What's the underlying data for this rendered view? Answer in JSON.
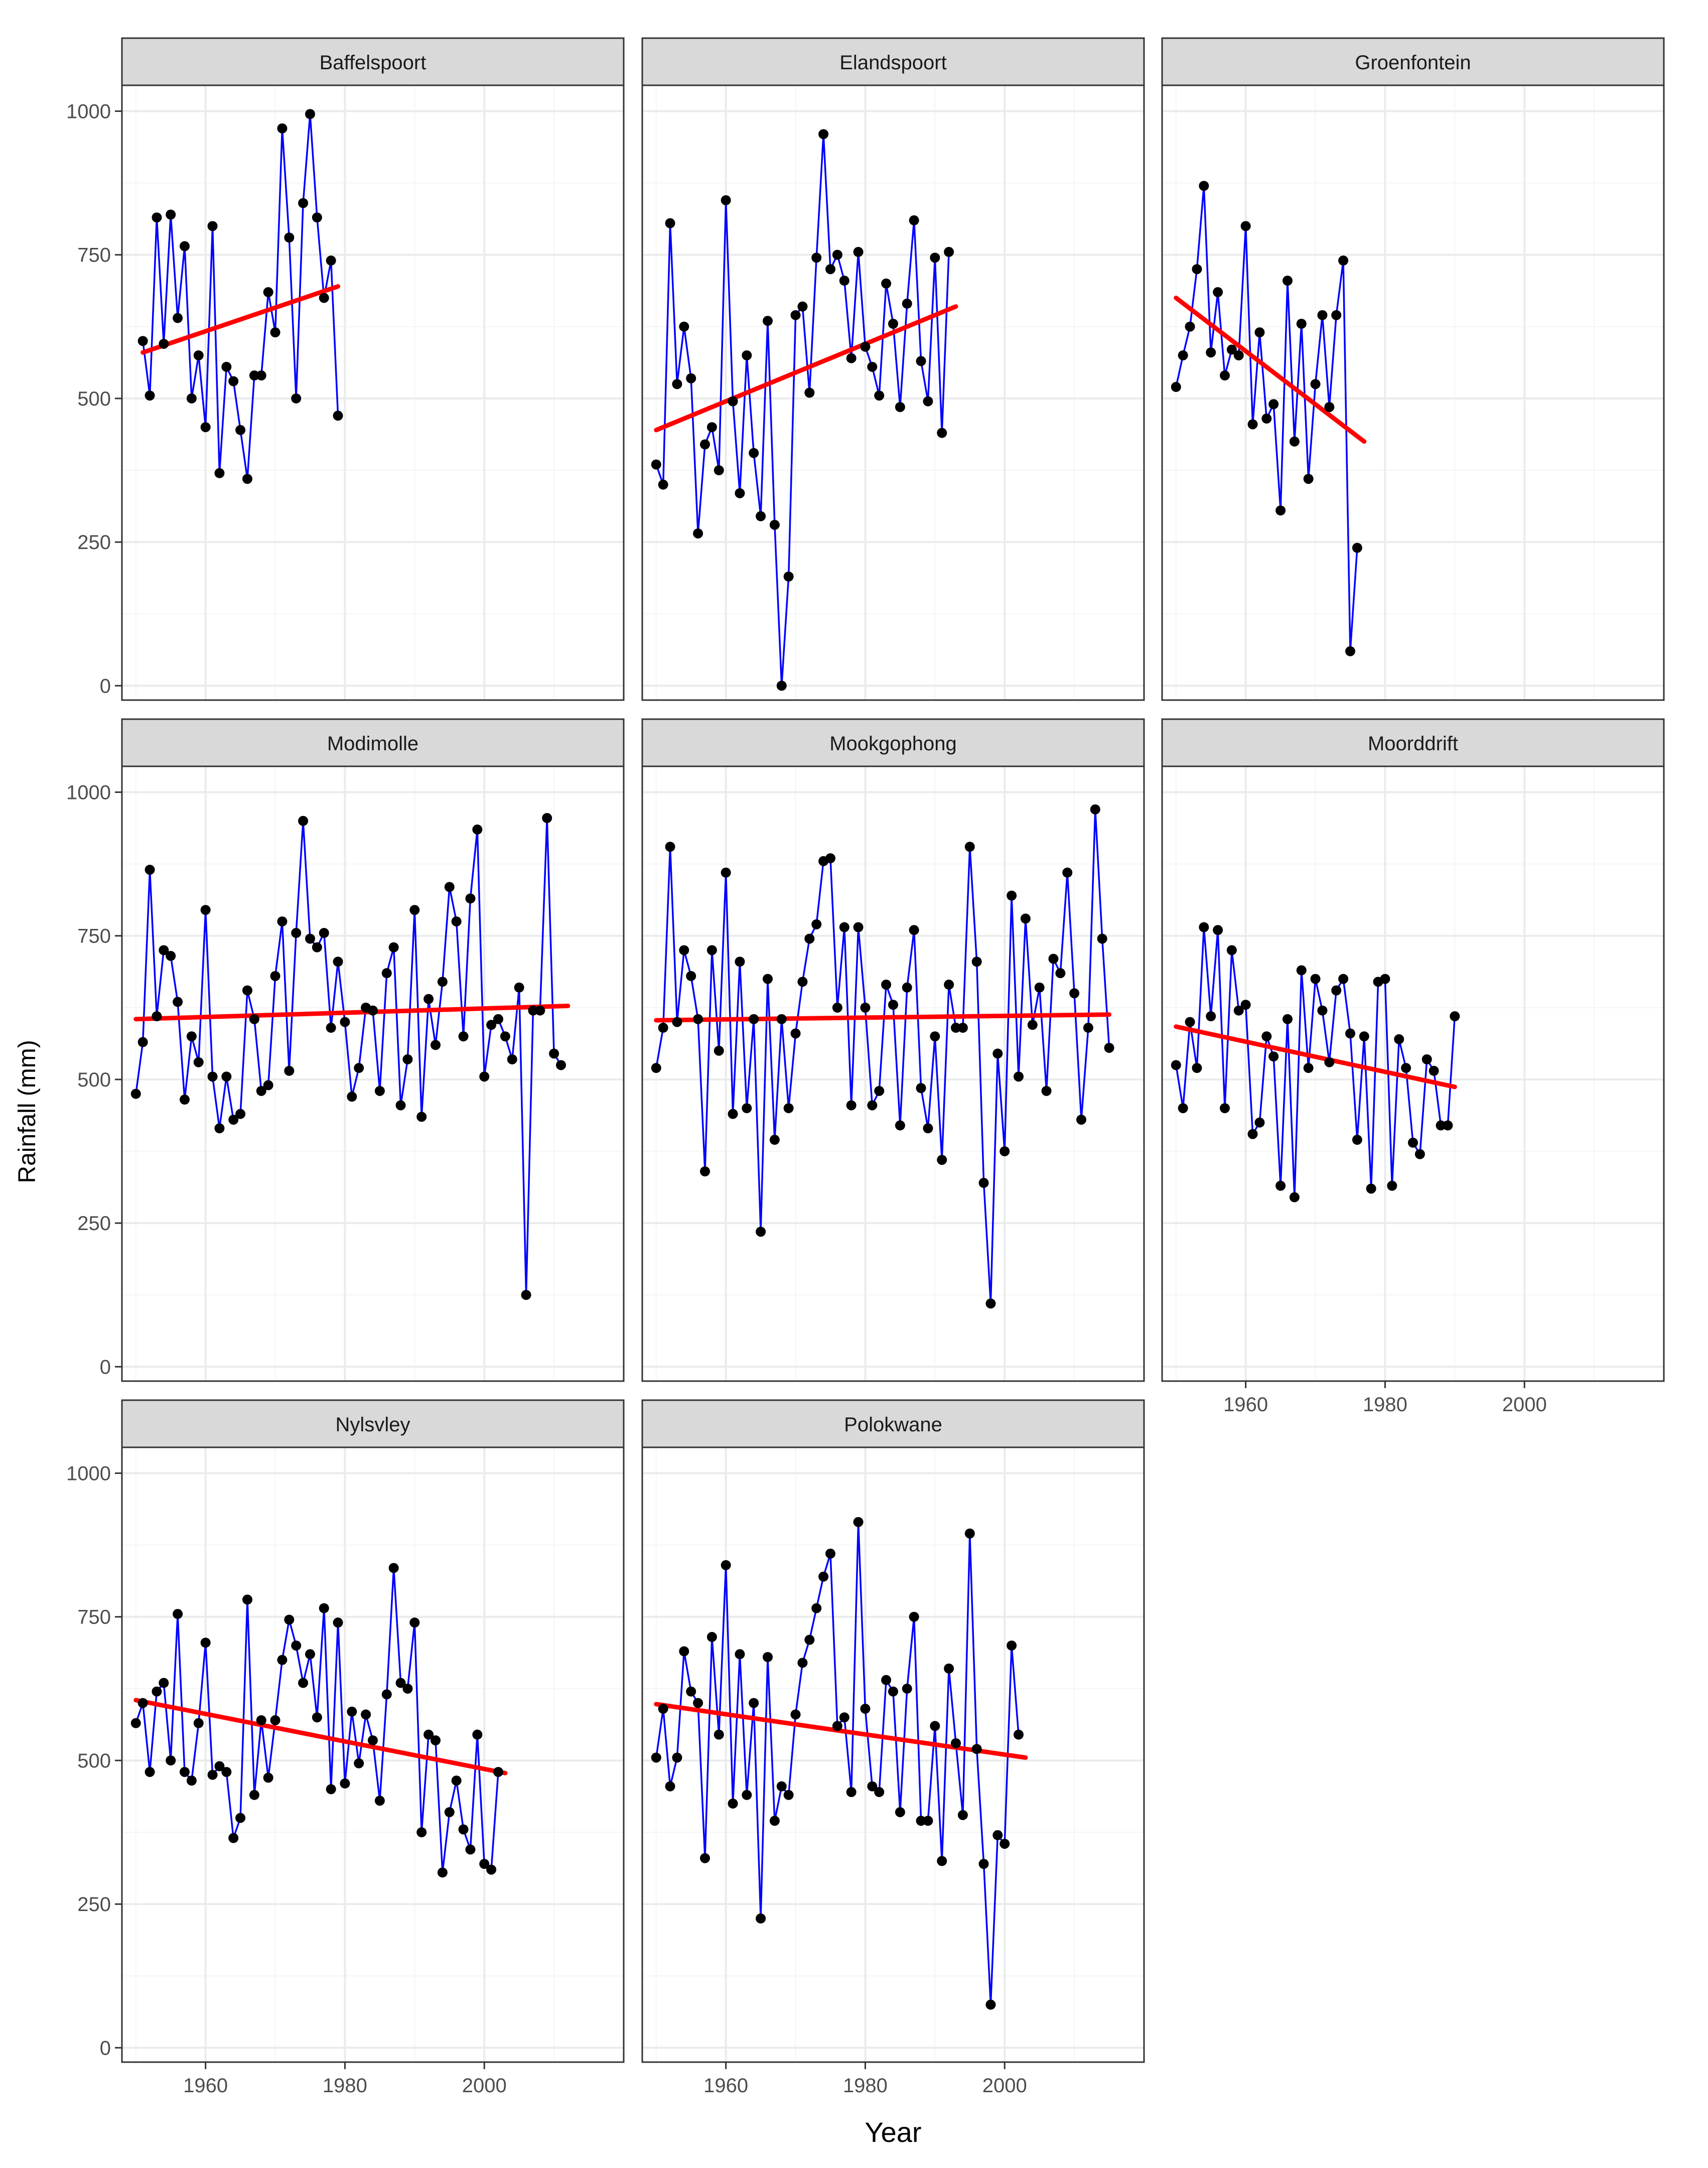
{
  "chart_data": {
    "type": "line",
    "layout": "faceted small multiples, 3 columns x 3 rows, shared axes",
    "xlabel": "Year",
    "ylabel": "Rainfall (mm)",
    "xlim": [
      1948,
      2020
    ],
    "ylim": [
      -25,
      1045
    ],
    "x_ticks": [
      1960,
      1980,
      2000
    ],
    "y_ticks": [
      0,
      250,
      500,
      750,
      1000
    ],
    "grid": true,
    "colors": {
      "series_line": "#0000ff",
      "points": "#000000",
      "trend_line": "#ff0000",
      "strip_background": "#d9d9d9",
      "grid_major": "#ebebeb",
      "grid_minor": "#f5f5f5",
      "panel_border": "#333333"
    },
    "panels": [
      {
        "name": "Baffelspoort",
        "start_year": 1951,
        "values": [
          600,
          505,
          815,
          595,
          820,
          640,
          765,
          500,
          575,
          450,
          800,
          370,
          555,
          530,
          445,
          360,
          540,
          540,
          685,
          615,
          970,
          780,
          500,
          840,
          995,
          815,
          675,
          740,
          470
        ],
        "trend": [
          [
            1951,
            580
          ],
          [
            1979,
            695
          ]
        ]
      },
      {
        "name": "Elandspoort",
        "start_year": 1950,
        "values": [
          385,
          350,
          805,
          525,
          625,
          535,
          265,
          420,
          450,
          375,
          845,
          495,
          335,
          575,
          405,
          295,
          635,
          280,
          0,
          190,
          645,
          660,
          510,
          745,
          960,
          725,
          750,
          705,
          570,
          755,
          590,
          555,
          505,
          700,
          630,
          485,
          665,
          810,
          565,
          495,
          745,
          440,
          755
        ],
        "trend": [
          [
            1950,
            445
          ],
          [
            1993,
            660
          ]
        ]
      },
      {
        "name": "Groenfontein",
        "start_year": 1950,
        "values": [
          520,
          575,
          625,
          725,
          870,
          580,
          685,
          540,
          585,
          575,
          800,
          455,
          615,
          465,
          490,
          305,
          705,
          425,
          630,
          360,
          525,
          645,
          485,
          645,
          740,
          60,
          240
        ],
        "trend": [
          [
            1950,
            675
          ],
          [
            1977,
            425
          ]
        ]
      },
      {
        "name": "Modimolle",
        "start_year": 1950,
        "values": [
          475,
          565,
          865,
          610,
          725,
          715,
          635,
          465,
          575,
          530,
          795,
          505,
          415,
          505,
          430,
          440,
          655,
          605,
          480,
          490,
          680,
          775,
          515,
          755,
          950,
          745,
          730,
          755,
          590,
          705,
          600,
          470,
          520,
          625,
          620,
          480,
          685,
          730,
          455,
          535,
          795,
          435,
          640,
          560,
          670,
          835,
          775,
          575,
          815,
          935,
          505,
          595,
          605,
          575,
          535,
          660,
          125,
          620,
          620,
          955,
          545,
          525
        ],
        "trend": [
          [
            1950,
            605
          ],
          [
            2012,
            628
          ]
        ]
      },
      {
        "name": "Mookgophong",
        "start_year": 1950,
        "values": [
          520,
          590,
          905,
          600,
          725,
          680,
          605,
          340,
          725,
          550,
          860,
          440,
          705,
          450,
          605,
          235,
          675,
          395,
          605,
          450,
          580,
          670,
          745,
          770,
          880,
          885,
          625,
          765,
          455,
          765,
          625,
          455,
          480,
          665,
          630,
          420,
          660,
          760,
          485,
          415,
          575,
          360,
          665,
          590,
          590,
          905,
          705,
          320,
          110,
          545,
          375,
          820,
          505,
          780,
          595,
          660,
          480,
          710,
          685,
          860,
          650,
          430,
          590,
          970,
          745,
          555
        ],
        "trend": [
          [
            1950,
            603
          ],
          [
            2015,
            613
          ]
        ]
      },
      {
        "name": "Moorddrift",
        "start_year": 1950,
        "values": [
          525,
          450,
          600,
          520,
          765,
          610,
          760,
          450,
          725,
          620,
          630,
          405,
          425,
          575,
          540,
          315,
          605,
          295,
          690,
          520,
          675,
          620,
          530,
          655,
          675,
          580,
          395,
          575,
          310,
          670,
          675,
          315,
          570,
          520,
          390,
          370,
          535,
          515,
          420,
          420,
          610
        ],
        "trend": [
          [
            1950,
            592
          ],
          [
            1990,
            487
          ]
        ]
      },
      {
        "name": "Nylsvley",
        "start_year": 1950,
        "values": [
          565,
          600,
          480,
          620,
          635,
          500,
          755,
          480,
          465,
          565,
          705,
          475,
          490,
          480,
          365,
          400,
          780,
          440,
          570,
          470,
          570,
          675,
          745,
          700,
          635,
          685,
          575,
          765,
          450,
          740,
          460,
          585,
          495,
          580,
          535,
          430,
          615,
          835,
          635,
          625,
          740,
          375,
          545,
          535,
          305,
          410,
          465,
          380,
          345,
          545,
          320,
          310,
          480
        ],
        "trend": [
          [
            1950,
            605
          ],
          [
            2003,
            478
          ]
        ]
      },
      {
        "name": "Polokwane",
        "start_year": 1950,
        "values": [
          505,
          590,
          455,
          505,
          690,
          620,
          600,
          330,
          715,
          545,
          840,
          425,
          685,
          440,
          600,
          225,
          680,
          395,
          455,
          440,
          580,
          670,
          710,
          765,
          820,
          860,
          560,
          575,
          445,
          915,
          590,
          455,
          445,
          640,
          620,
          410,
          625,
          750,
          395,
          395,
          560,
          325,
          660,
          530,
          405,
          895,
          520,
          320,
          75,
          370,
          355,
          700,
          545
        ],
        "trend": [
          [
            1950,
            598
          ],
          [
            2003,
            505
          ]
        ]
      }
    ]
  }
}
